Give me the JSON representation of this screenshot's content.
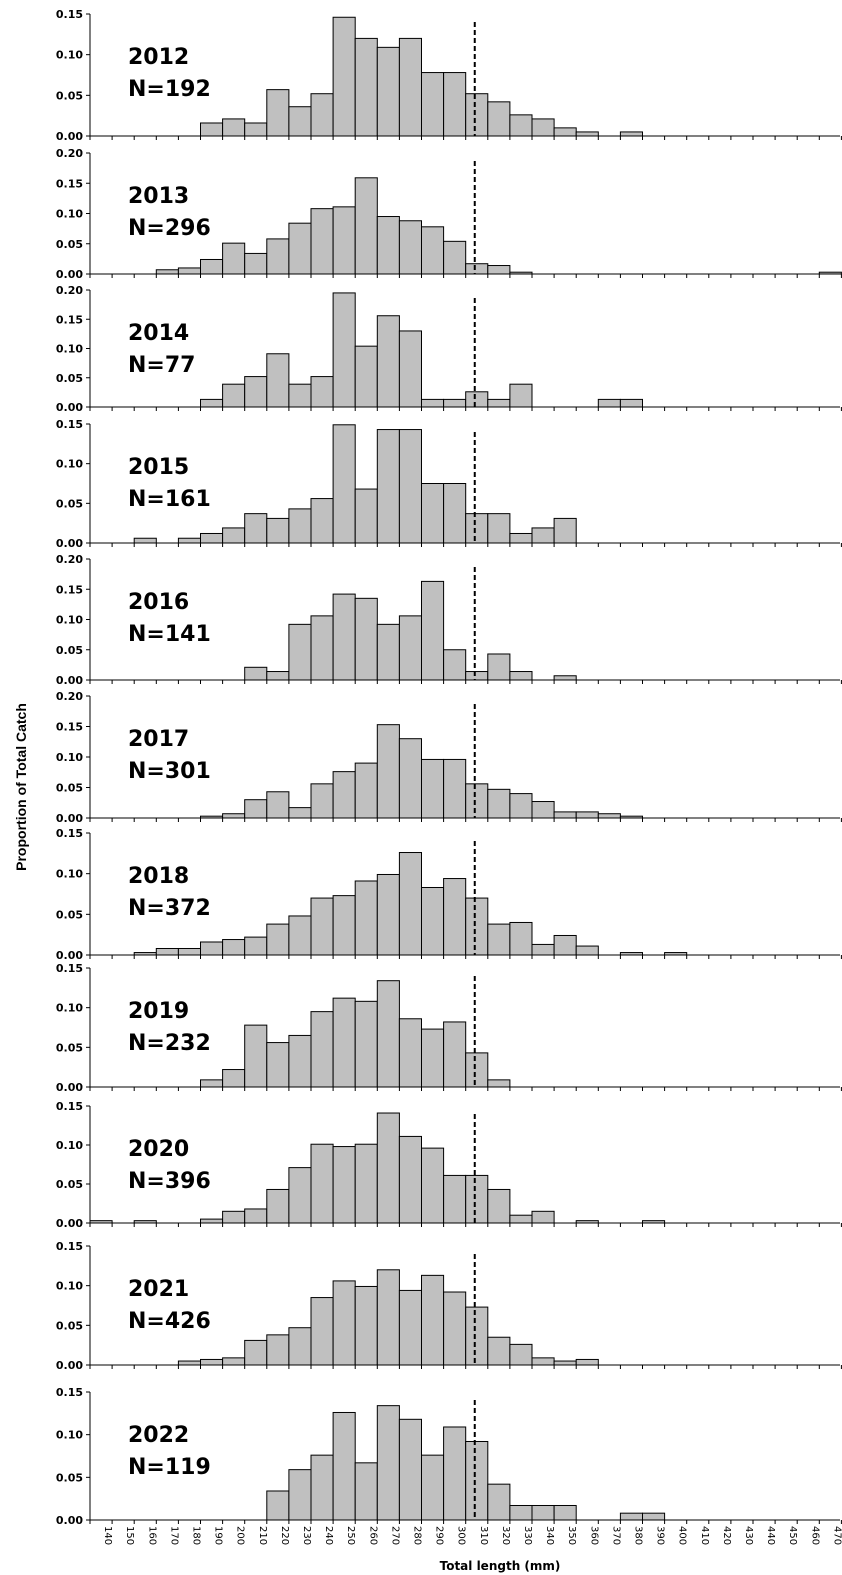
{
  "chart_data": {
    "type": "bar",
    "ylabel": "Proportion of Total Catch",
    "xlabel": "Total length (mm)",
    "x_tick_labels": [
      "140",
      "150",
      "160",
      "170",
      "180",
      "190",
      "200",
      "210",
      "220",
      "230",
      "240",
      "250",
      "260",
      "270",
      "280",
      "290",
      "300",
      "310",
      "320",
      "330",
      "340",
      "350",
      "360",
      "370",
      "380",
      "390",
      "400",
      "410",
      "420",
      "430",
      "440",
      "450",
      "460",
      "470"
    ],
    "reference_line_mm": 315,
    "panels": [
      {
        "year": "2012",
        "n_label": "N=192",
        "ylim": [
          0,
          0.15
        ],
        "yticks": [
          "0.00",
          "0.05",
          "0.10",
          "0.15"
        ],
        "bins": [
          190,
          200,
          210,
          220,
          230,
          240,
          250,
          260,
          270,
          280,
          290,
          300,
          310,
          320,
          330,
          340,
          350,
          360,
          380
        ],
        "values": [
          0.016,
          0.021,
          0.016,
          0.057,
          0.036,
          0.052,
          0.146,
          0.12,
          0.109,
          0.12,
          0.078,
          0.078,
          0.052,
          0.042,
          0.026,
          0.021,
          0.01,
          0.005,
          0.005
        ]
      },
      {
        "year": "2013",
        "n_label": "N=296",
        "ylim": [
          0,
          0.2
        ],
        "yticks": [
          "0.00",
          "0.05",
          "0.10",
          "0.15",
          "0.20"
        ],
        "bins": [
          170,
          180,
          190,
          200,
          210,
          220,
          230,
          240,
          250,
          260,
          270,
          280,
          290,
          300,
          310,
          320,
          330,
          470
        ],
        "values": [
          0.007,
          0.01,
          0.024,
          0.051,
          0.034,
          0.058,
          0.084,
          0.108,
          0.111,
          0.159,
          0.095,
          0.088,
          0.078,
          0.054,
          0.017,
          0.014,
          0.003,
          0.003
        ]
      },
      {
        "year": "2014",
        "n_label": "N=77",
        "ylim": [
          0,
          0.2
        ],
        "yticks": [
          "0.00",
          "0.05",
          "0.10",
          "0.15",
          "0.20"
        ],
        "bins": [
          190,
          200,
          210,
          220,
          230,
          240,
          250,
          260,
          270,
          280,
          290,
          300,
          310,
          320,
          330,
          370,
          380
        ],
        "values": [
          0.013,
          0.039,
          0.052,
          0.091,
          0.039,
          0.052,
          0.195,
          0.104,
          0.156,
          0.13,
          0.013,
          0.013,
          0.026,
          0.013,
          0.039,
          0.013,
          0.013
        ]
      },
      {
        "year": "2015",
        "n_label": "N=161",
        "ylim": [
          0,
          0.15
        ],
        "yticks": [
          "0.00",
          "0.05",
          "0.10",
          "0.15"
        ],
        "bins": [
          160,
          180,
          190,
          200,
          210,
          220,
          230,
          240,
          250,
          260,
          270,
          280,
          290,
          300,
          310,
          320,
          330,
          340,
          350
        ],
        "values": [
          0.006,
          0.006,
          0.012,
          0.019,
          0.037,
          0.031,
          0.043,
          0.056,
          0.149,
          0.068,
          0.143,
          0.143,
          0.075,
          0.075,
          0.037,
          0.037,
          0.012,
          0.019,
          0.031
        ]
      },
      {
        "year": "2016",
        "n_label": "N=141",
        "ylim": [
          0,
          0.2
        ],
        "yticks": [
          "0.00",
          "0.05",
          "0.10",
          "0.15",
          "0.20"
        ],
        "bins": [
          210,
          220,
          230,
          240,
          250,
          260,
          270,
          280,
          290,
          300,
          310,
          320,
          330,
          350
        ],
        "values": [
          0.021,
          0.014,
          0.092,
          0.106,
          0.142,
          0.135,
          0.092,
          0.106,
          0.163,
          0.05,
          0.014,
          0.043,
          0.014,
          0.007
        ]
      },
      {
        "year": "2017",
        "n_label": "N=301",
        "ylim": [
          0,
          0.2
        ],
        "yticks": [
          "0.00",
          "0.05",
          "0.10",
          "0.15",
          "0.20"
        ],
        "bins": [
          190,
          200,
          210,
          220,
          230,
          240,
          250,
          260,
          270,
          280,
          290,
          300,
          310,
          320,
          330,
          340,
          350,
          360,
          370,
          380
        ],
        "values": [
          0.003,
          0.007,
          0.03,
          0.043,
          0.017,
          0.056,
          0.076,
          0.09,
          0.153,
          0.13,
          0.096,
          0.096,
          0.056,
          0.047,
          0.04,
          0.027,
          0.01,
          0.01,
          0.007,
          0.003
        ]
      },
      {
        "year": "2018",
        "n_label": "N=372",
        "ylim": [
          0,
          0.15
        ],
        "yticks": [
          "0.00",
          "0.05",
          "0.10",
          "0.15"
        ],
        "bins": [
          160,
          170,
          180,
          190,
          200,
          210,
          220,
          230,
          240,
          250,
          260,
          270,
          280,
          290,
          300,
          310,
          320,
          330,
          340,
          350,
          360,
          380,
          400
        ],
        "values": [
          0.003,
          0.008,
          0.008,
          0.016,
          0.019,
          0.022,
          0.038,
          0.048,
          0.07,
          0.073,
          0.091,
          0.099,
          0.126,
          0.083,
          0.094,
          0.07,
          0.038,
          0.04,
          0.013,
          0.024,
          0.011,
          0.003,
          0.003
        ]
      },
      {
        "year": "2019",
        "n_label": "N=232",
        "ylim": [
          0,
          0.15
        ],
        "yticks": [
          "0.00",
          "0.05",
          "0.10",
          "0.15"
        ],
        "bins": [
          190,
          200,
          210,
          220,
          230,
          240,
          250,
          260,
          270,
          280,
          290,
          300,
          310,
          320
        ],
        "values": [
          0.009,
          0.022,
          0.078,
          0.056,
          0.065,
          0.095,
          0.112,
          0.108,
          0.134,
          0.086,
          0.073,
          0.082,
          0.043,
          0.009
        ]
      },
      {
        "year": "2020",
        "n_label": "N=396",
        "ylim": [
          0,
          0.15
        ],
        "yticks": [
          "0.00",
          "0.05",
          "0.10",
          "0.15"
        ],
        "bins": [
          140,
          160,
          190,
          200,
          210,
          220,
          230,
          240,
          250,
          260,
          270,
          280,
          290,
          300,
          310,
          320,
          330,
          340,
          360,
          390
        ],
        "values": [
          0.003,
          0.003,
          0.005,
          0.015,
          0.018,
          0.043,
          0.071,
          0.101,
          0.098,
          0.101,
          0.141,
          0.111,
          0.096,
          0.061,
          0.061,
          0.043,
          0.01,
          0.015,
          0.003,
          0.003
        ]
      },
      {
        "year": "2021",
        "n_label": "N=426",
        "ylim": [
          0,
          0.15
        ],
        "yticks": [
          "0.00",
          "0.05",
          "0.10",
          "0.15"
        ],
        "bins": [
          180,
          190,
          200,
          210,
          220,
          230,
          240,
          250,
          260,
          270,
          280,
          290,
          300,
          310,
          320,
          330,
          340,
          350,
          360
        ],
        "values": [
          0.005,
          0.007,
          0.009,
          0.031,
          0.038,
          0.047,
          0.085,
          0.106,
          0.099,
          0.12,
          0.094,
          0.113,
          0.092,
          0.073,
          0.035,
          0.026,
          0.009,
          0.005,
          0.007
        ]
      },
      {
        "year": "2022",
        "n_label": "N=119",
        "ylim": [
          0,
          0.15
        ],
        "yticks": [
          "0.00",
          "0.05",
          "0.10",
          "0.15"
        ],
        "bins": [
          220,
          230,
          240,
          250,
          260,
          270,
          280,
          290,
          300,
          310,
          320,
          330,
          340,
          350,
          380,
          390
        ],
        "values": [
          0.034,
          0.059,
          0.076,
          0.126,
          0.067,
          0.134,
          0.118,
          0.076,
          0.109,
          0.092,
          0.042,
          0.017,
          0.017,
          0.017,
          0.008,
          0.008
        ]
      }
    ]
  }
}
